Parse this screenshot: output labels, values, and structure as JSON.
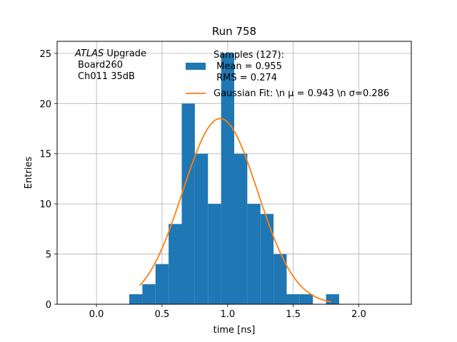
{
  "chart_data": {
    "type": "bar",
    "title": "Run 758",
    "xlabel": "time [ns]",
    "ylabel": "Entries",
    "xlim": [
      -0.3,
      2.4
    ],
    "ylim": [
      0,
      26.2
    ],
    "grid": true,
    "x_ticks": [
      0.0,
      0.5,
      1.0,
      1.5,
      2.0
    ],
    "x_tick_labels": [
      "0.0",
      "0.5",
      "1.0",
      "1.5",
      "2.0"
    ],
    "y_ticks": [
      0,
      5,
      10,
      15,
      20,
      25
    ],
    "y_tick_labels": [
      "0",
      "5",
      "10",
      "15",
      "20",
      "25"
    ],
    "colors": {
      "histogram": "#1f77b4",
      "fit": "#ff7f0e",
      "grid": "#b0b0b0"
    },
    "histogram": {
      "name": "Samples (127):",
      "bin_edges": [
        0.25,
        0.35,
        0.45,
        0.55,
        0.65,
        0.75,
        0.85,
        0.95,
        1.05,
        1.15,
        1.25,
        1.35,
        1.45,
        1.55,
        1.65,
        1.75,
        1.85,
        1.95
      ],
      "counts": [
        1,
        2,
        4,
        8,
        20,
        15,
        10,
        25,
        15,
        10,
        9,
        5,
        1,
        1,
        0,
        1,
        0
      ]
    },
    "fit": {
      "name": "Gaussian Fit",
      "mu": 0.943,
      "sigma": 0.286,
      "amplitude": 18.5,
      "x_range": [
        0.33,
        1.79
      ]
    },
    "annotation_lines": [
      {
        "italic": "ATLAS",
        "rest": " Upgrade"
      },
      {
        "italic": "",
        "rest": "Board260"
      },
      {
        "italic": "",
        "rest": "Ch011 35dB"
      }
    ],
    "legend": {
      "position": "top-right",
      "entries": [
        {
          "kind": "patch",
          "lines": [
            "Samples (127):",
            " Mean = 0.955",
            " RMS = 0.274"
          ]
        },
        {
          "kind": "line",
          "lines": [
            "Gaussian Fit: \\n μ = 0.943 \\n σ=0.286"
          ]
        }
      ]
    }
  }
}
